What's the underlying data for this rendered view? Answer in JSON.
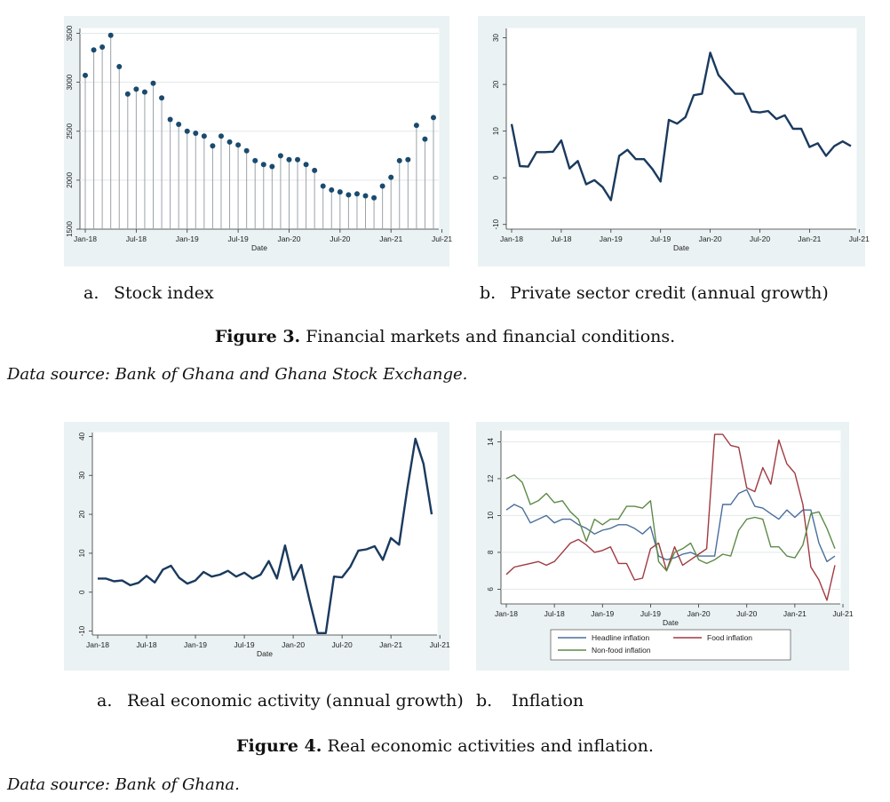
{
  "figure3": {
    "number": "Figure 3.",
    "text": "Financial markets and financial conditions.",
    "source": "Data source: Bank of Ghana and Ghana Stock Exchange.",
    "sub_a": {
      "letter": "a.",
      "text": "Stock index"
    },
    "sub_b": {
      "letter": "b.",
      "text": "Private sector credit (annual growth)"
    }
  },
  "figure4": {
    "number": "Figure 4.",
    "text": "Real economic activities and inflation.",
    "source": "Data source: Bank of Ghana.",
    "sub_a": {
      "letter": "a.",
      "text": "Real economic activity (annual growth)"
    },
    "sub_b": {
      "letter": "b.",
      "text": "Inflation"
    }
  },
  "chart_data": [
    {
      "id": "stock",
      "type": "scatter",
      "style": "dropline",
      "xlabel": "Date",
      "ylabel": "",
      "xticks": [
        "Jan-18",
        "Jul-18",
        "Jan-19",
        "Jul-19",
        "Jan-20",
        "Jul-20",
        "Jan-21",
        "Jul-21"
      ],
      "yticks": [
        1500,
        2000,
        2500,
        3000,
        3500
      ],
      "ylim": [
        1500,
        3550
      ],
      "x_start": "Jan-18",
      "series": [
        {
          "values": [
            3070,
            3330,
            3360,
            3480,
            3160,
            2880,
            2930,
            2900,
            2990,
            2840,
            2620,
            2570,
            2500,
            2480,
            2450,
            2350,
            2450,
            2390,
            2360,
            2300,
            2200,
            2160,
            2140,
            2250,
            2210,
            2210,
            2160,
            2100,
            1940,
            1900,
            1880,
            1850,
            1860,
            1840,
            1820,
            1940,
            2030,
            2200,
            2210,
            2560,
            2420,
            2640
          ]
        }
      ],
      "color": "#1a4a6e",
      "grid": true
    },
    {
      "id": "credit",
      "type": "line",
      "xlabel": "Date",
      "ylabel": "",
      "xticks": [
        "Jan-18",
        "Jul-18",
        "Jan-19",
        "Jul-19",
        "Jan-20",
        "Jul-20",
        "Jan-21",
        "Jul-21"
      ],
      "yticks": [
        -10,
        0,
        10,
        20,
        30
      ],
      "ylim": [
        -11,
        32
      ],
      "x_start": "Jan-18",
      "series": [
        {
          "values": [
            11.5,
            2.5,
            2.4,
            5.5,
            5.5,
            5.6,
            8,
            2,
            3.6,
            -1.4,
            -0.5,
            -2,
            -4.8,
            4.7,
            6,
            4,
            4,
            1.9,
            -0.8,
            12.4,
            11.6,
            13,
            17.7,
            18,
            26.8,
            22,
            20,
            18,
            18,
            14.2,
            14,
            14.3,
            12.6,
            13.4,
            10.5,
            10.5,
            6.6,
            7.4,
            4.7,
            6.8,
            7.8,
            6.8
          ]
        }
      ],
      "color": "#1a3a5e",
      "grid": false
    },
    {
      "id": "activity",
      "type": "line",
      "xlabel": "Date",
      "ylabel": "",
      "xticks": [
        "Jan-18",
        "Jul-18",
        "Jan-19",
        "Jul-19",
        "Jan-20",
        "Jul-20",
        "Jan-21",
        "Jul-21"
      ],
      "yticks": [
        -10,
        0,
        10,
        20,
        30,
        40
      ],
      "ylim": [
        -11,
        41
      ],
      "x_start": "Jan-18",
      "series": [
        {
          "values": [
            3.5,
            3.5,
            2.8,
            3,
            1.8,
            2.4,
            4.2,
            2.5,
            5.8,
            6.8,
            3.7,
            2.2,
            3,
            5.2,
            4,
            4.5,
            5.5,
            4,
            5,
            3.5,
            4.5,
            8,
            3.5,
            12,
            3.2,
            7,
            -2,
            -10.5,
            -10.5,
            4,
            3.8,
            6.5,
            10.7,
            11,
            11.8,
            8.3,
            13.9,
            12.2,
            26.5,
            39.4,
            33,
            20
          ]
        }
      ],
      "color": "#1a3a5e",
      "grid": false
    },
    {
      "id": "inflation",
      "type": "line",
      "xlabel": "Date",
      "ylabel": "",
      "xticks": [
        "Jan-18",
        "Jul-18",
        "Jan-19",
        "Jul-19",
        "Jan-20",
        "Jul-20",
        "Jan-21",
        "Jul-21"
      ],
      "yticks": [
        6,
        8,
        10,
        12,
        14
      ],
      "ylim": [
        5.2,
        14.6
      ],
      "x_start": "Jan-18",
      "legend": "bottom",
      "grid": true,
      "series": [
        {
          "name": "Headline inflation",
          "color": "#4a6e9c",
          "values": [
            10.3,
            10.6,
            10.4,
            9.6,
            9.8,
            10,
            9.6,
            9.8,
            9.8,
            9.5,
            9.3,
            9,
            9.2,
            9.3,
            9.5,
            9.5,
            9.3,
            9,
            9.4,
            7.8,
            7.6,
            7.7,
            7.9,
            8,
            7.8,
            7.8,
            7.8,
            10.6,
            10.6,
            11.2,
            11.4,
            10.5,
            10.4,
            10.1,
            9.8,
            10.3,
            9.9,
            10.3,
            10.3,
            8.5,
            7.5,
            7.8
          ]
        },
        {
          "name": "Food inflation",
          "color": "#a03a40",
          "values": [
            6.8,
            7.2,
            7.3,
            7.4,
            7.5,
            7.3,
            7.5,
            8,
            8.5,
            8.7,
            8.4,
            8,
            8.1,
            8.3,
            7.4,
            7.4,
            6.5,
            6.6,
            8.2,
            8.5,
            7,
            8.3,
            7.3,
            7.6,
            7.9,
            8.2,
            14.4,
            14.4,
            13.8,
            13.7,
            11.5,
            11.3,
            12.6,
            11.7,
            14.1,
            12.8,
            12.3,
            10.6,
            7.2,
            6.5,
            5.4,
            7.3
          ]
        },
        {
          "name": "Non-food inflation",
          "color": "#5e8a48",
          "values": [
            12,
            12.2,
            11.8,
            10.6,
            10.8,
            11.2,
            10.7,
            10.8,
            10.2,
            9.8,
            8.6,
            9.8,
            9.5,
            9.8,
            9.8,
            10.5,
            10.5,
            10.4,
            10.8,
            7.5,
            7,
            8,
            8.2,
            8.5,
            7.6,
            7.4,
            7.6,
            7.9,
            7.8,
            9.2,
            9.8,
            9.9,
            9.8,
            8.3,
            8.3,
            7.8,
            7.7,
            8.4,
            10.1,
            10.2,
            9.3,
            8.2
          ]
        }
      ]
    }
  ]
}
